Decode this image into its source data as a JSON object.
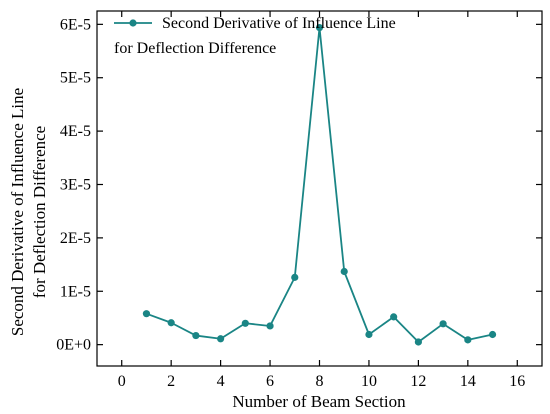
{
  "chart_data": {
    "type": "line",
    "title": "",
    "xlabel": "Number of Beam Section",
    "ylabel_lines": [
      "Second Derivative of Influence Line",
      "for Deflection Difference"
    ],
    "xlim": [
      -1,
      17
    ],
    "ylim": [
      -4e-06,
      6.25e-05
    ],
    "x_ticks": [
      0,
      2,
      4,
      6,
      8,
      10,
      12,
      14,
      16
    ],
    "x_tick_labels": [
      "0",
      "2",
      "4",
      "6",
      "8",
      "10",
      "12",
      "14",
      "16"
    ],
    "y_ticks": [
      0,
      1e-05,
      2e-05,
      3e-05,
      4e-05,
      5e-05,
      6e-05
    ],
    "y_tick_labels": [
      "0E+0",
      "1E-5",
      "2E-5",
      "3E-5",
      "4E-5",
      "5E-5",
      "6E-5"
    ],
    "grid": false,
    "legend_position": "top-left",
    "series": [
      {
        "name_lines": [
          "Second Derivative of Influence Line",
          "for Deflection Difference"
        ],
        "color": "#1a8585",
        "marker": "circle",
        "x": [
          1,
          2,
          3,
          4,
          5,
          6,
          7,
          8,
          9,
          10,
          11,
          12,
          13,
          14,
          15
        ],
        "y": [
          5.8e-06,
          4.1e-06,
          1.7e-06,
          1.1e-06,
          4e-06,
          3.5e-06,
          1.26e-05,
          5.94e-05,
          1.37e-05,
          1.9e-06,
          5.2e-06,
          5e-07,
          3.9e-06,
          9e-07,
          1.9e-06
        ]
      }
    ]
  }
}
